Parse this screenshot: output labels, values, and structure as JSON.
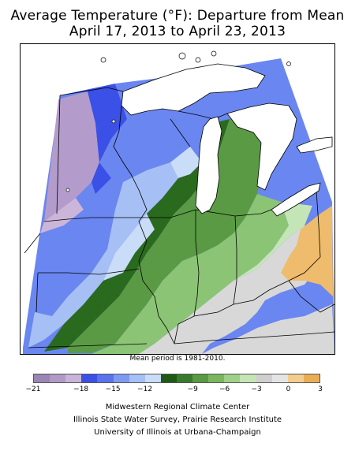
{
  "title_line1": "Average Temperature (°F): Departure from Mean",
  "title_line2": "April 17, 2013 to April 23, 2013",
  "mean_period_note": "Mean period is 1981-2010.",
  "legend": {
    "colors": [
      "#9a86b5",
      "#b09ac6",
      "#c9b3d8",
      "#3a50e6",
      "#5a72ee",
      "#7c9af2",
      "#a6c0f5",
      "#c9dcf8",
      "#1f5a14",
      "#3a7a2c",
      "#5a9a44",
      "#7bb65e",
      "#9fd088",
      "#c4e5b6",
      "#cfcfcf",
      "#e4e4e4",
      "#f2cd8c",
      "#e8ad55"
    ],
    "tick_labels": [
      {
        "label": "−21",
        "pos": 0
      },
      {
        "label": "−18",
        "pos": 3
      },
      {
        "label": "−15",
        "pos": 5
      },
      {
        "label": "−12",
        "pos": 7
      },
      {
        "label": "−9",
        "pos": 10
      },
      {
        "label": "−6",
        "pos": 12
      },
      {
        "label": "−3",
        "pos": 14
      },
      {
        "label": "0",
        "pos": 16
      },
      {
        "label": "3",
        "pos": 18
      }
    ]
  },
  "credits": [
    "Midwestern Regional Climate Center",
    "Illinois State Water Survey, Prairie Research Institute",
    "University of Illinois at Urbana-Champaign"
  ],
  "map": {
    "region_colors": {
      "lavender": "#b39ccb",
      "lavender_light": "#cbb6d9",
      "blue_dark": "#3a50e6",
      "blue_mid": "#6a86f0",
      "blue_light": "#a6c0f5",
      "blue_pale": "#c9dcf8",
      "green_dark": "#2a6a1e",
      "green_mid": "#5a9a44",
      "green_light": "#8cc475",
      "green_pale": "#c4e5b6",
      "gray": "#d8d8d8",
      "orange": "#eebc6c",
      "water": "#ffffff"
    }
  }
}
